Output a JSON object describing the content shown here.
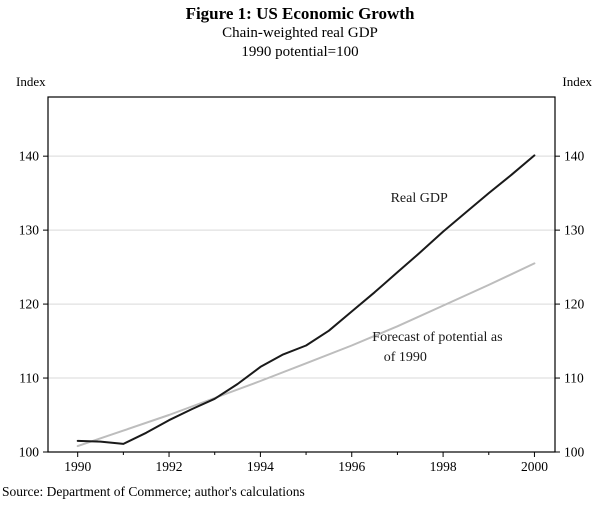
{
  "header": {
    "title": "Figure 1: US Economic Growth",
    "subtitle1": "Chain-weighted real GDP",
    "subtitle2": "1990 potential=100"
  },
  "axis": {
    "left_label": "Index",
    "right_label": "Index"
  },
  "footer": {
    "source": "Source: Department of Commerce; author's calculations"
  },
  "chart_data": {
    "type": "line",
    "title": "Figure 1: US Economic Growth",
    "subtitle": "Chain-weighted real GDP, 1990 potential=100",
    "ylabel": "Index",
    "xlim": [
      1989.35,
      2000.45
    ],
    "ylim": [
      100,
      148
    ],
    "yticks": [
      100,
      110,
      120,
      130,
      140
    ],
    "xticks": [
      1990,
      1992,
      1994,
      1996,
      1998,
      2000
    ],
    "xticks_minor": [
      1991,
      1993,
      1995,
      1997,
      1999
    ],
    "grid": true,
    "grid_color": "#d9d9d9",
    "box_color": "#000000",
    "legend_position": "inline-annotations",
    "series": [
      {
        "name": "Forecast of potential as of 1990",
        "color": "#bdbdbd",
        "width": 2,
        "x": [
          1990,
          1991,
          1992,
          1993,
          1994,
          1995,
          1996,
          1997,
          1998,
          1999,
          2000
        ],
        "y": [
          100.8,
          102.9,
          105.0,
          107.3,
          109.6,
          112.0,
          114.4,
          117.0,
          119.8,
          122.6,
          125.5
        ]
      },
      {
        "name": "Real GDP",
        "color": "#1a1a1a",
        "width": 2,
        "x": [
          1990,
          1990.5,
          1991,
          1991.5,
          1992,
          1992.5,
          1993,
          1993.5,
          1994,
          1994.5,
          1995,
          1995.5,
          1996,
          1996.5,
          1997,
          1997.5,
          1998,
          1998.5,
          1999,
          1999.5,
          2000
        ],
        "y": [
          101.5,
          101.4,
          101.1,
          102.6,
          104.3,
          105.8,
          107.2,
          109.2,
          111.5,
          113.2,
          114.4,
          116.4,
          119.0,
          121.6,
          124.3,
          127.0,
          129.8,
          132.4,
          135.0,
          137.5,
          140.1
        ]
      }
    ],
    "annotations": [
      {
        "text": "Real GDP",
        "x": 1996.85,
        "y": 133.8,
        "anchor": "start"
      },
      {
        "text": "Forecast of potential as",
        "x": 1996.45,
        "y": 115.0,
        "anchor": "start"
      },
      {
        "text": "of 1990",
        "x": 1996.7,
        "y": 112.3,
        "anchor": "start"
      }
    ]
  }
}
